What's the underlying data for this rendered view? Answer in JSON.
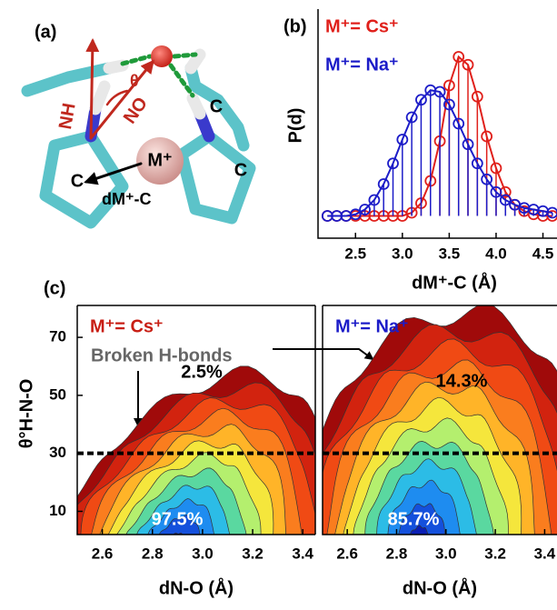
{
  "panel_a": {
    "label": "(a)",
    "texts": {
      "theta": "θ",
      "nh": "NH",
      "no": "NO",
      "m": "M⁺",
      "c1": "C",
      "c2": "C",
      "c3": "C",
      "d": "dM⁺-C"
    }
  },
  "chart_data": [
    {
      "type": "line",
      "panel_label": "(b)",
      "y_label": "P(d)",
      "x_label": "dM⁺-C (Å)",
      "legend": "upper left",
      "stems": true,
      "x": [
        2.2,
        2.3,
        2.4,
        2.5,
        2.6,
        2.7,
        2.8,
        2.9,
        3.0,
        3.1,
        3.2,
        3.3,
        3.4,
        3.5,
        3.6,
        3.7,
        3.8,
        3.9,
        4.0,
        4.1,
        4.2,
        4.3,
        4.4,
        4.5,
        4.6
      ],
      "series": [
        {
          "name": "M⁺= Cs⁺",
          "color": "#e0201b",
          "values": [
            0,
            0,
            0,
            0,
            0,
            0,
            0,
            0,
            0,
            0.02,
            0.08,
            0.22,
            0.47,
            0.82,
            1.0,
            0.95,
            0.75,
            0.5,
            0.3,
            0.15,
            0.07,
            0.03,
            0.01,
            0,
            0
          ]
        },
        {
          "name": "M⁺= Na⁺",
          "color": "#1c1cc8",
          "values": [
            0,
            0,
            0,
            0.01,
            0.04,
            0.1,
            0.2,
            0.33,
            0.48,
            0.62,
            0.73,
            0.79,
            0.78,
            0.7,
            0.58,
            0.45,
            0.33,
            0.23,
            0.15,
            0.1,
            0.07,
            0.05,
            0.04,
            0.03,
            0.02
          ]
        }
      ],
      "xlim": [
        2.1,
        4.65
      ],
      "ylim": [
        -0.14,
        1.3
      ],
      "xticks": [
        2.5,
        {
          "value": 3,
          "label": "3.0"
        },
        3.5,
        {
          "value": 4,
          "label": "4.0"
        },
        4.5
      ]
    },
    {
      "type": "contour",
      "panel_label": "(c)",
      "title": "M⁺= Cs⁺",
      "title_color": "#c81e14",
      "y_label": "θ°H-N-O",
      "x_label": "dN-O (Å)",
      "labels": [
        "Broken H-bonds",
        "2.5%",
        "97.5%"
      ],
      "colors": [
        "#a00a0a",
        "#d2230f",
        "#f04a14",
        "#fa7d1e",
        "#ffb428",
        "#f5e63c",
        "#b4ef6e",
        "#5ad8a0",
        "#2cbce6",
        "#1e8cf0",
        "#1450dc",
        "#0a1eb4"
      ],
      "xlim": [
        2.5,
        3.45
      ],
      "ylim": [
        2,
        81
      ],
      "xticks": [
        2.6,
        2.8,
        {
          "value": 3,
          "label": "3.0"
        },
        3.2,
        3.4
      ],
      "yticks": [
        10,
        30,
        50,
        70
      ],
      "threshold": 30
    },
    {
      "type": "contour",
      "title": "M⁺= Na⁺",
      "title_color": "#1c1cc8",
      "x_label": "dN-O (Å)",
      "labels": [
        "14.3%",
        "85.7%"
      ],
      "colors": [
        "#a00a0a",
        "#d2230f",
        "#f04a14",
        "#fa7d1e",
        "#ffb428",
        "#f5e63c",
        "#b4ef6e",
        "#5ad8a0",
        "#2cbce6",
        "#1e8cf0",
        "#1450dc",
        "#0a1eb4"
      ],
      "xlim": [
        2.5,
        3.45
      ],
      "ylim": [
        2,
        81
      ],
      "xticks": [
        2.6,
        2.8,
        {
          "value": 3,
          "label": "3.0"
        },
        3.2,
        3.4
      ],
      "threshold": 30
    }
  ]
}
